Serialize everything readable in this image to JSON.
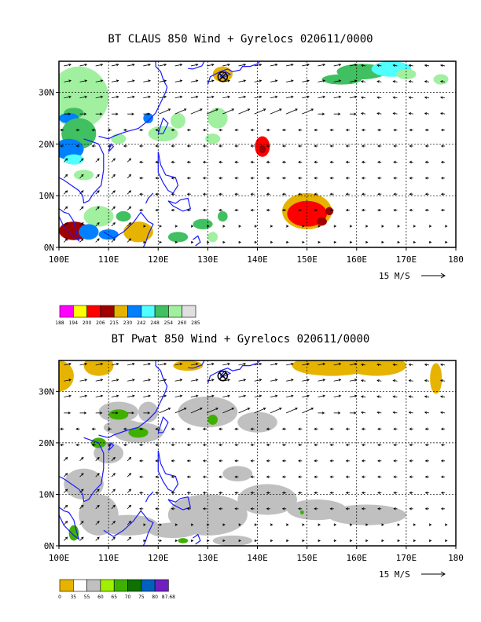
{
  "colors": {
    "coast": "#1a1aff",
    "claus_scale": [
      "#ff00ff",
      "#ffff00",
      "#ff0000",
      "#a00000",
      "#e6b400",
      "#0080ff",
      "#50ffff",
      "#40c060",
      "#a0f0a0",
      "#e0e0e0"
    ],
    "pwat_scale": [
      "#e6b400",
      "#ffffff",
      "#c0c0c0",
      "#a0f000",
      "#40b000",
      "#107000",
      "#0060c0",
      "#7020c0"
    ]
  },
  "chart_data": [
    {
      "type": "map",
      "title": "BT CLAUS 850 Wind + Gyrelocs 020611/0000",
      "x_ticks": [
        "100E",
        "110E",
        "120E",
        "130E",
        "140E",
        "150E",
        "160E",
        "170E",
        "180"
      ],
      "y_ticks": [
        "30N",
        "20N",
        "10N",
        "0N"
      ],
      "xlim": [
        100,
        180
      ],
      "ylim": [
        0,
        36
      ],
      "vector_scale_label": "15 M/S",
      "gyre_location": {
        "lon": 133,
        "lat": 33
      },
      "colorbar": {
        "labels": [
          "188",
          "194",
          "200",
          "206",
          "215",
          "230",
          "242",
          "248",
          "254",
          "260",
          "285"
        ]
      },
      "features": [
        {
          "lon": 150,
          "lat": 7,
          "class": "deep convection"
        },
        {
          "lon": 141,
          "lat": 19.5,
          "class": "convection"
        },
        {
          "lon": 103,
          "lat": 3,
          "class": "convection"
        }
      ]
    },
    {
      "type": "map",
      "title": "BT Pwat 850 Wind + Gyrelocs 020611/0000",
      "x_ticks": [
        "100E",
        "110E",
        "120E",
        "130E",
        "140E",
        "150E",
        "160E",
        "170E",
        "180"
      ],
      "y_ticks": [
        "30N",
        "20N",
        "10N",
        "0N"
      ],
      "xlim": [
        100,
        180
      ],
      "ylim": [
        0,
        36
      ],
      "vector_scale_label": "15 M/S",
      "gyre_location": {
        "lon": 133,
        "lat": 33
      },
      "colorbar": {
        "labels": [
          "0",
          "35",
          "55",
          "60",
          "65",
          "70",
          "75",
          "80",
          "87.68"
        ]
      }
    }
  ]
}
